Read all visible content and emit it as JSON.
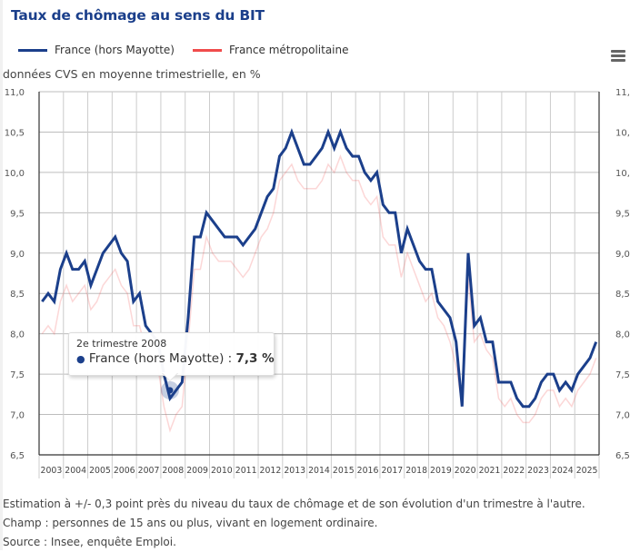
{
  "title": "Taux de chômage au sens du BIT",
  "legend": [
    {
      "label": "France (hors Mayotte)",
      "color": "#1b3f8b"
    },
    {
      "label": "France métropolitaine",
      "color": "#f04b4b"
    }
  ],
  "menu_icon": "hamburger-menu-icon",
  "unit_label": "données CVS en moyenne trimestrielle, en %",
  "tooltip": {
    "header": "2e trimestre 2008",
    "series": "France (hors Mayotte)",
    "separator": " : ",
    "value": "7,3 %"
  },
  "notes": [
    "Estimation à +/- 0,3 point près du niveau du taux de chômage et de son évolution d'un trimestre à l'autre.",
    "Champ : personnes de 15 ans ou plus, vivant en logement ordinaire.",
    "Source : Insee, enquête Emploi."
  ],
  "chart_data": {
    "type": "line",
    "title": "Taux de chômage au sens du BIT",
    "subtitle": "données CVS en moyenne trimestrielle, en %",
    "xlabel": "",
    "ylabel": "",
    "ylim": [
      6.5,
      11.0
    ],
    "yticks": [
      6.5,
      7.0,
      7.5,
      8.0,
      8.5,
      9.0,
      9.5,
      10.0,
      10.5,
      11.0
    ],
    "ytick_labels": [
      "6,5",
      "7,0",
      "7,5",
      "8,0",
      "8,5",
      "9,0",
      "9,5",
      "10,0",
      "10,5",
      "11,0"
    ],
    "x_categories": [
      "2003",
      "2004",
      "2005",
      "2006",
      "2007",
      "2008",
      "2009",
      "2010",
      "2011",
      "2012",
      "2013",
      "2014",
      "2015",
      "2016",
      "2017",
      "2018",
      "2019",
      "2020",
      "2021",
      "2022",
      "2023",
      "2024",
      "2025"
    ],
    "x_granularity": "quarter",
    "x_start": "2003 T1",
    "grid": true,
    "legend_position": "top-left",
    "highlighted_point": {
      "series": "France (hors Mayotte)",
      "period": "2e trimestre 2008",
      "value": 7.3
    },
    "series": [
      {
        "name": "France (hors Mayotte)",
        "color": "#1b3f8b",
        "values": [
          8.4,
          8.5,
          8.4,
          8.8,
          9.0,
          8.8,
          8.8,
          8.9,
          8.6,
          8.8,
          9.0,
          9.1,
          9.2,
          9.0,
          8.9,
          8.4,
          8.5,
          8.1,
          8.0,
          7.9,
          7.5,
          7.2,
          7.3,
          7.4,
          8.2,
          9.2,
          9.2,
          9.5,
          9.4,
          9.3,
          9.2,
          9.2,
          9.2,
          9.1,
          9.2,
          9.3,
          9.5,
          9.7,
          9.8,
          10.2,
          10.3,
          10.5,
          10.3,
          10.1,
          10.1,
          10.2,
          10.3,
          10.5,
          10.3,
          10.5,
          10.3,
          10.2,
          10.2,
          10.0,
          9.9,
          10.0,
          9.6,
          9.5,
          9.5,
          9.0,
          9.3,
          9.1,
          8.9,
          8.8,
          8.8,
          8.4,
          8.3,
          8.2,
          7.9,
          7.1,
          9.0,
          8.1,
          8.2,
          7.9,
          7.9,
          7.4,
          7.4,
          7.4,
          7.2,
          7.1,
          7.1,
          7.2,
          7.4,
          7.5,
          7.5,
          7.3,
          7.4,
          7.3,
          7.5,
          7.6,
          7.7,
          7.9
        ]
      },
      {
        "name": "France métropolitaine",
        "color": "#f04b4b",
        "values": [
          8.0,
          8.1,
          8.0,
          8.4,
          8.6,
          8.4,
          8.5,
          8.6,
          8.3,
          8.4,
          8.6,
          8.7,
          8.8,
          8.6,
          8.5,
          8.1,
          8.1,
          7.8,
          7.7,
          7.6,
          7.1,
          6.8,
          7.0,
          7.1,
          7.9,
          8.8,
          8.8,
          9.2,
          9.0,
          8.9,
          8.9,
          8.9,
          8.8,
          8.7,
          8.8,
          9.0,
          9.2,
          9.3,
          9.5,
          9.9,
          10.0,
          10.1,
          9.9,
          9.8,
          9.8,
          9.8,
          9.9,
          10.1,
          10.0,
          10.2,
          10.0,
          9.9,
          9.9,
          9.7,
          9.6,
          9.7,
          9.2,
          9.1,
          9.1,
          8.7,
          9.0,
          8.8,
          8.6,
          8.4,
          8.5,
          8.2,
          8.1,
          7.9,
          7.6,
          7.1,
          8.7,
          7.9,
          8.0,
          7.8,
          7.7,
          7.2,
          7.1,
          7.2,
          7.0,
          6.9,
          6.9,
          7.0,
          7.2,
          7.3,
          7.3,
          7.1,
          7.2,
          7.1,
          7.3,
          7.4,
          7.5,
          7.7
        ]
      }
    ]
  }
}
